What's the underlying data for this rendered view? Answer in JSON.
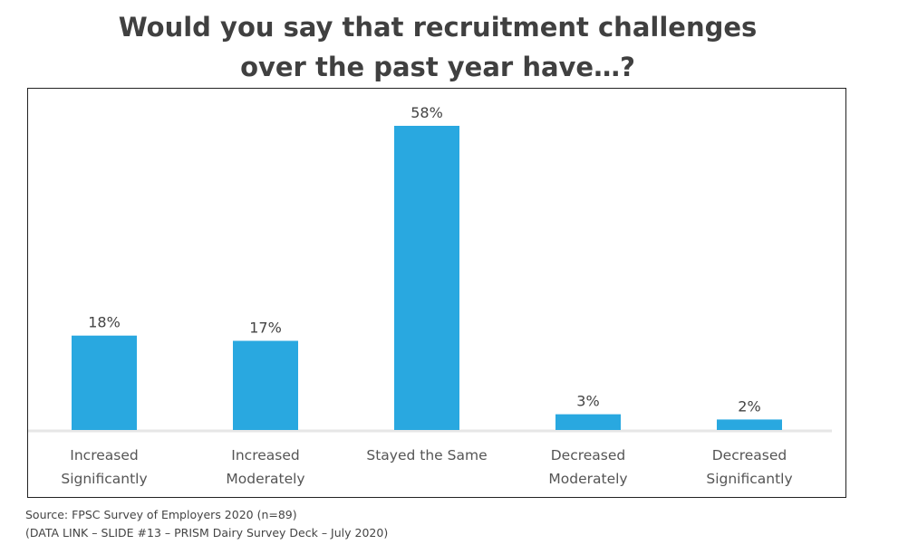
{
  "chart_data": {
    "type": "bar",
    "title": [
      "Would you say that recruitment challenges",
      "over the past year have…?"
    ],
    "categories": [
      [
        "Increased",
        "Significantly"
      ],
      [
        "Increased",
        "Moderately"
      ],
      [
        "Stayed the Same"
      ],
      [
        "Decreased",
        "Moderately"
      ],
      [
        "Decreased",
        "Significantly"
      ]
    ],
    "values": [
      18,
      17,
      58,
      3,
      2
    ],
    "value_labels": [
      "18%",
      "17%",
      "58%",
      "3%",
      "2%"
    ],
    "unit": "%",
    "xlabel": "",
    "ylabel": "",
    "ylim": [
      0,
      60
    ],
    "grid": false,
    "bar_color": "#29a8e0"
  },
  "footer": {
    "source": "Source: FPSC Survey of Employers 2020 (n=89)",
    "data_link": "(DATA LINK – SLIDE #13 – PRISM Dairy Survey Deck – July 2020)"
  }
}
